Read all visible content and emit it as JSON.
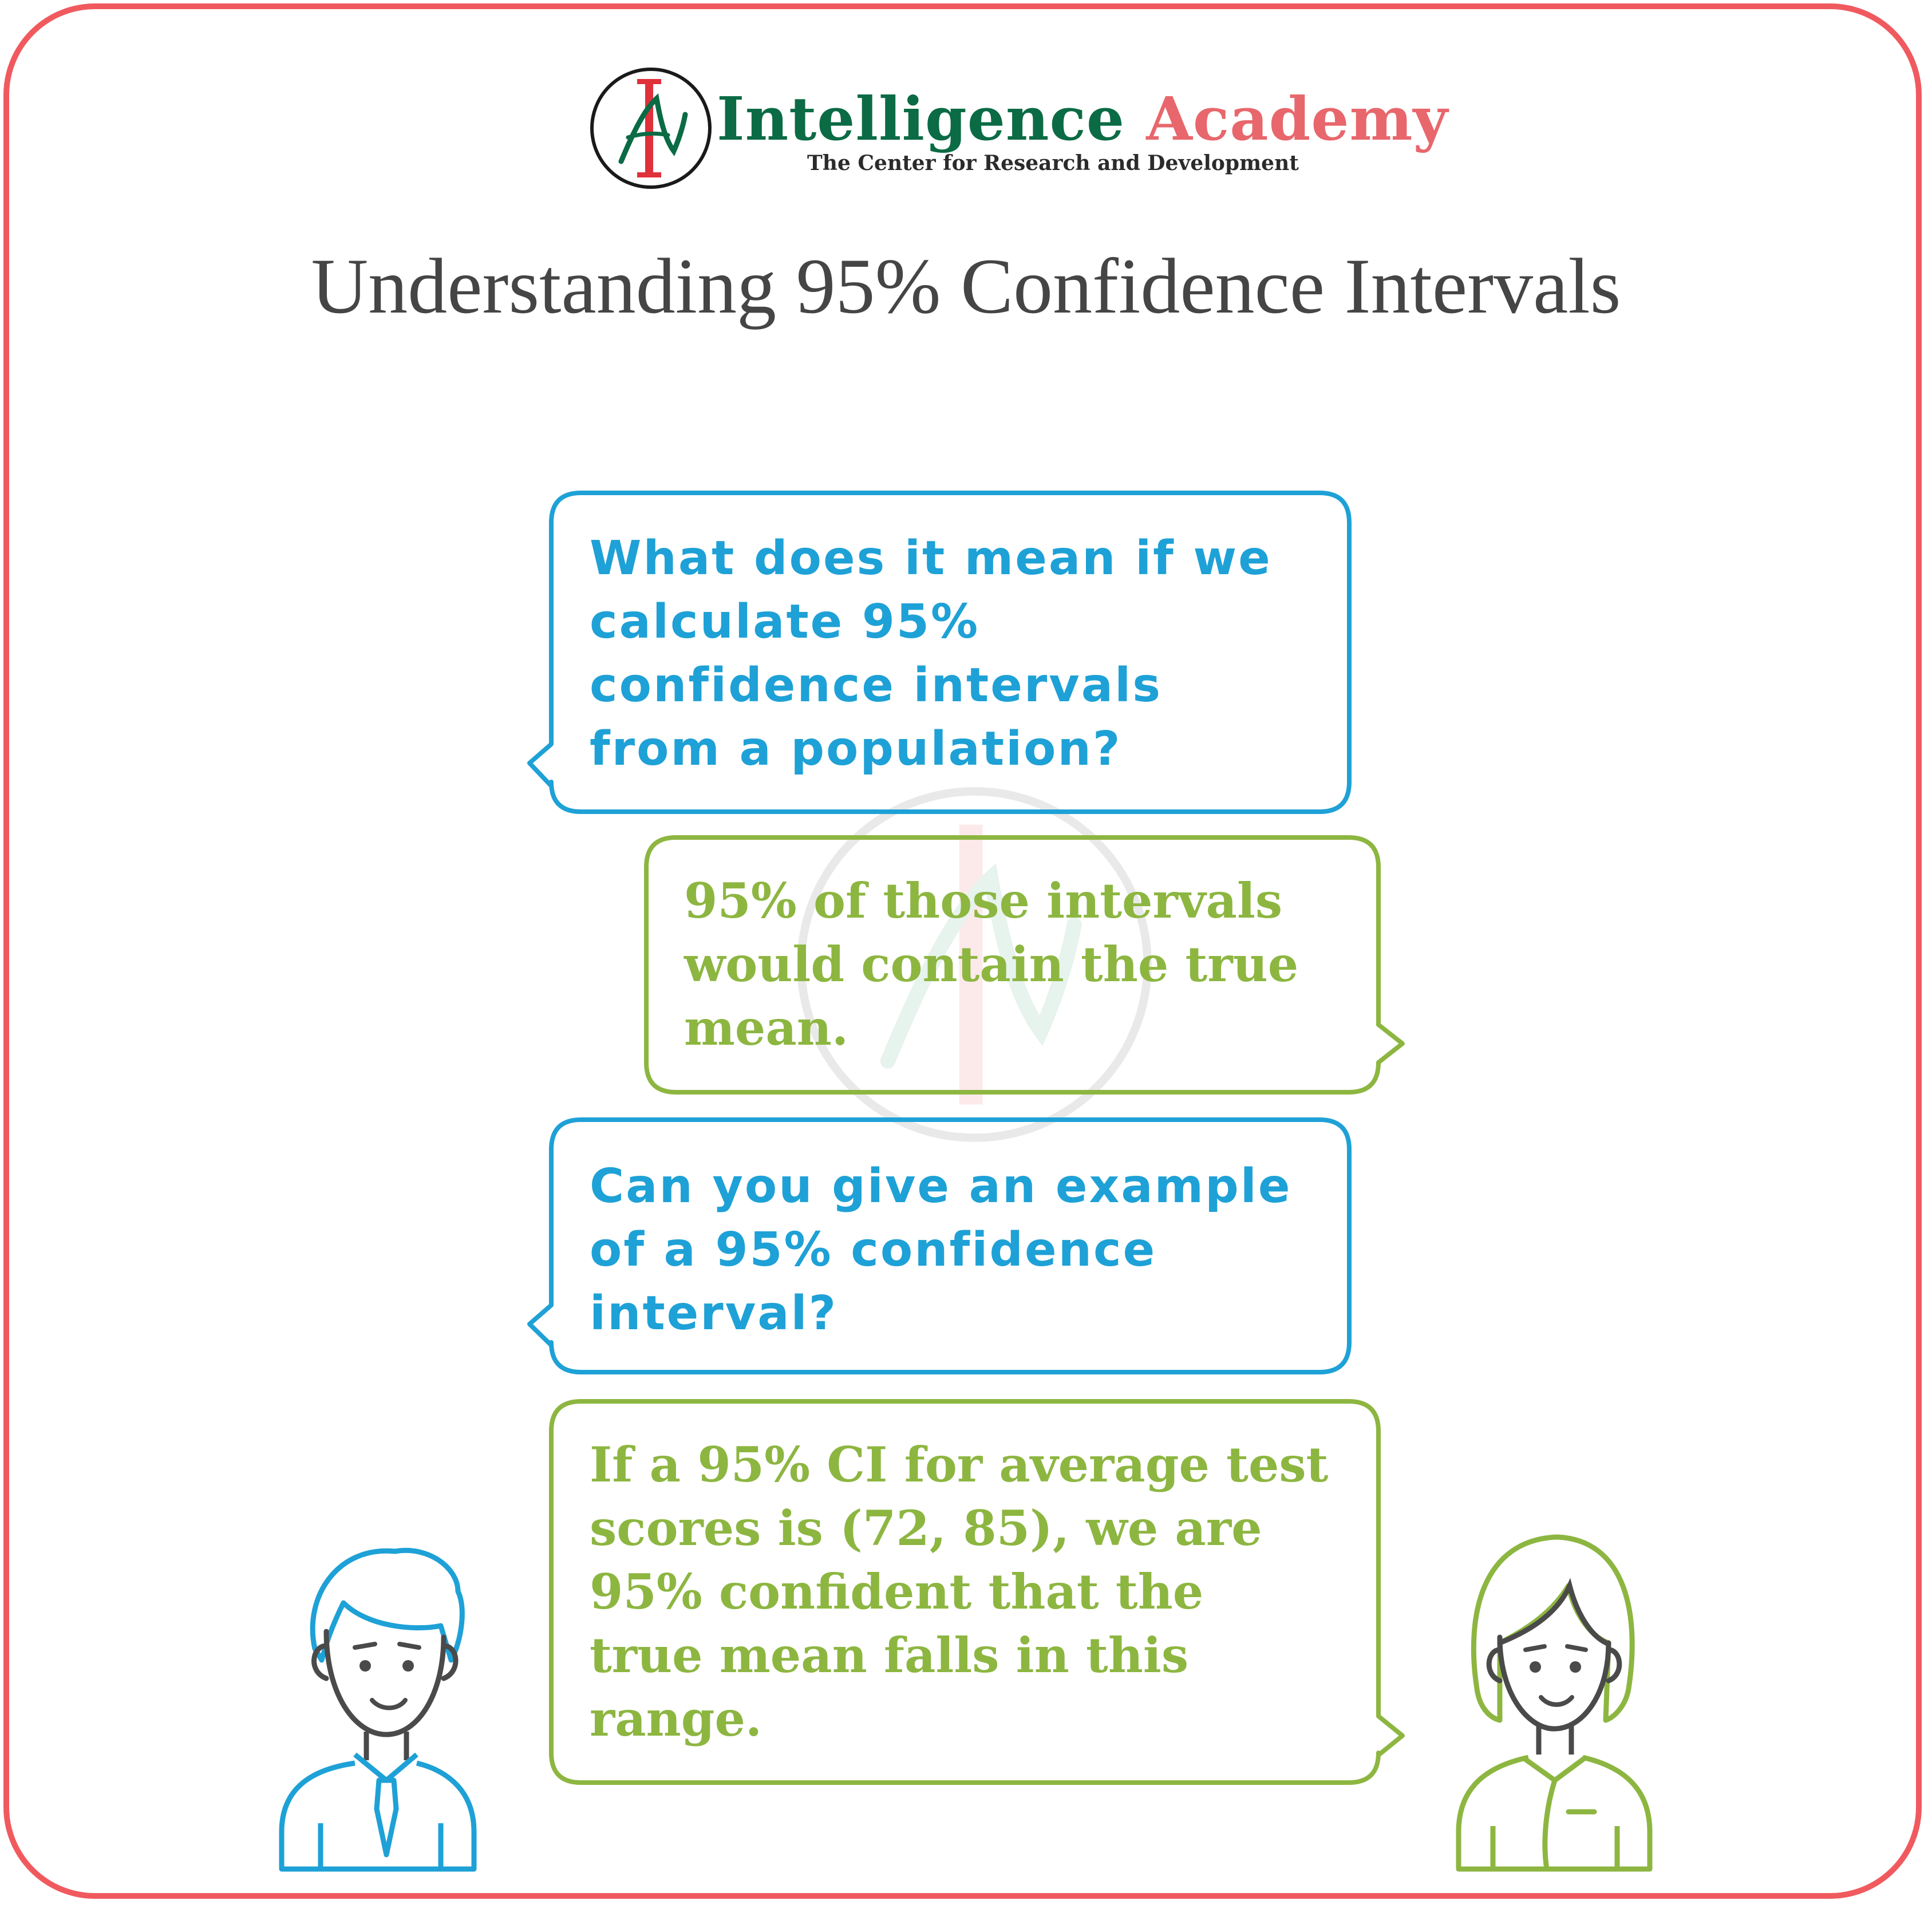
{
  "brand": {
    "name_part1": "Intelligence",
    "name_part2": "Academy",
    "subtitle": "The Center for Research and Development"
  },
  "title": "Understanding 95% Confidence Intervals",
  "conversation": [
    {
      "speaker": "man",
      "lines": [
        "What does it mean if we",
        "calculate 95%",
        "confidence intervals",
        "from a population?"
      ]
    },
    {
      "speaker": "woman",
      "lines": [
        "95% of those intervals",
        "would contain the true",
        "mean."
      ]
    },
    {
      "speaker": "man",
      "lines": [
        "Can you give an example",
        "of a 95% confidence",
        "interval?"
      ]
    },
    {
      "speaker": "woman",
      "lines": [
        "If a 95% CI for average test",
        "scores is (72, 85), we are",
        "95% confident that the",
        "true mean falls in this",
        "range."
      ]
    }
  ],
  "colors": {
    "frame": "#f05a5f",
    "question": "#1ea1d6",
    "answer": "#8db641",
    "brand_green": "#0b6b45",
    "brand_red": "#e8676c",
    "title": "#454545"
  },
  "icons": {
    "logo": "ia-monogram-icon",
    "man": "man-avatar-icon",
    "woman": "woman-avatar-icon"
  }
}
